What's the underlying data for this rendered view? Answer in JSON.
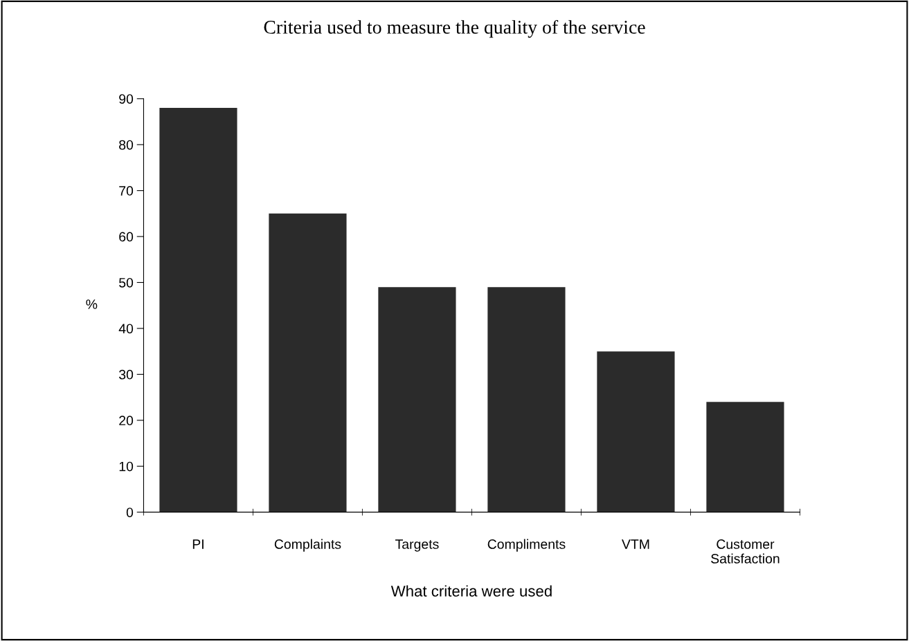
{
  "chart_data": {
    "type": "bar",
    "title": "Criteria used to measure the quality of the service",
    "xlabel": "What criteria were used",
    "ylabel": "%",
    "categories": [
      "PI",
      "Complaints",
      "Targets",
      "Compliments",
      "VTM",
      "Customer\nSatisfaction"
    ],
    "values": [
      88,
      65,
      49,
      49,
      35,
      24
    ],
    "color": "#2b2b2b",
    "ylim": [
      0,
      90
    ],
    "yticks": [
      0,
      10,
      20,
      30,
      40,
      50,
      60,
      70,
      80,
      90
    ],
    "grid": false
  }
}
